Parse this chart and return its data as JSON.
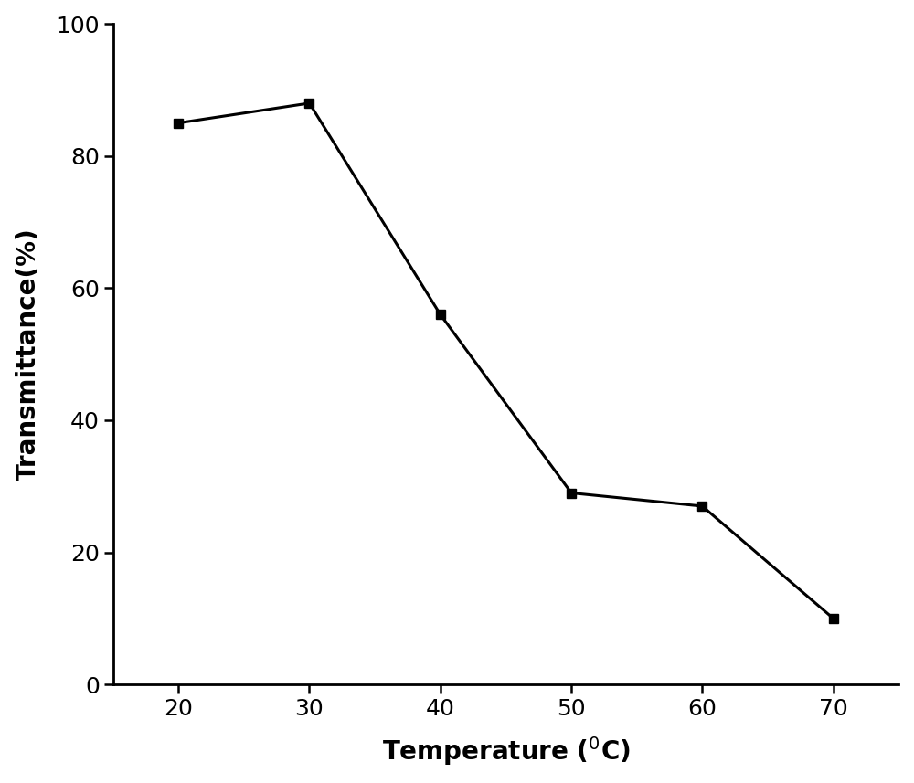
{
  "x": [
    20,
    30,
    40,
    50,
    60,
    70
  ],
  "y": [
    85,
    88,
    56,
    29,
    27,
    10
  ],
  "ylabel": "Transmittance(%)",
  "xlim": [
    15,
    75
  ],
  "ylim": [
    0,
    100
  ],
  "xticks": [
    20,
    30,
    40,
    50,
    60,
    70
  ],
  "yticks": [
    0,
    20,
    40,
    60,
    80,
    100
  ],
  "line_color": "#000000",
  "marker": "s",
  "marker_color": "#000000",
  "marker_size": 7,
  "line_width": 2.2,
  "background_color": "#ffffff",
  "spine_linewidth": 2.0,
  "tick_fontsize": 18,
  "label_fontsize": 20
}
